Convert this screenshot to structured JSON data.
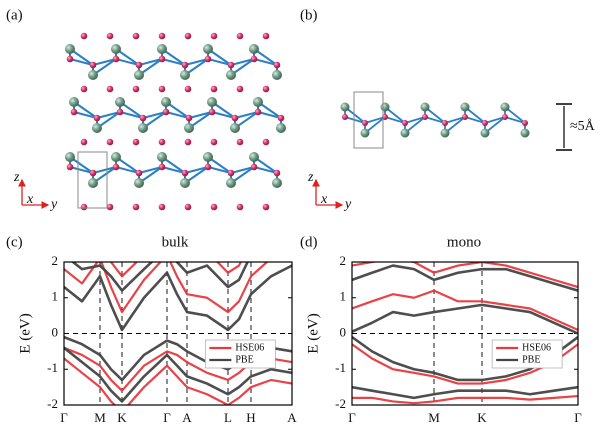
{
  "panels": {
    "a": "(a)",
    "b": "(b)"
  },
  "axes_a": {
    "z": "z",
    "x": "x",
    "y": "y"
  },
  "axes_b": {
    "z": "z",
    "x": "x",
    "y": "y"
  },
  "thickness": "≈5Å",
  "chart_data": [
    {
      "type": "band",
      "panel": "(c)",
      "title": "bulk",
      "ylabel": "E (eV)",
      "xlim": [
        0,
        228
      ],
      "ylim": [
        -2,
        2
      ],
      "yticks": [
        -2,
        -1,
        0,
        1,
        2
      ],
      "xticks": [
        {
          "value": 0,
          "label": "Γ"
        },
        {
          "value": 36,
          "label": "M"
        },
        {
          "value": 58,
          "label": "K"
        },
        {
          "value": 103,
          "label": "Γ"
        },
        {
          "value": 123,
          "label": "A"
        },
        {
          "value": 164,
          "label": "L"
        },
        {
          "value": 187,
          "label": "H"
        },
        {
          "value": 228,
          "label": "A"
        }
      ],
      "x": [
        0,
        18,
        36,
        47,
        58,
        80,
        103,
        113,
        123,
        143,
        164,
        175,
        187,
        207,
        228
      ],
      "series": [
        {
          "name": "HSE06",
          "color": "#e8383d",
          "bands": [
            [
              1.8,
              1.4,
              2.1,
              1.3,
              0.6,
              1.5,
              2.2,
              1.6,
              1.1,
              1.0,
              0.6,
              0.9,
              1.6,
              2.1,
              2.4
            ],
            [
              2.6,
              2.2,
              2.3,
              2.0,
              1.6,
              2.2,
              2.8,
              2.4,
              2.1,
              2.3,
              1.7,
              1.9,
              2.6,
              2.7,
              2.9
            ],
            [
              -0.4,
              -0.6,
              -0.9,
              -1.3,
              -1.6,
              -0.9,
              -0.5,
              -0.6,
              -0.8,
              -1.1,
              -1.3,
              -1.1,
              -0.8,
              -0.7,
              -0.8
            ],
            [
              -0.7,
              -1.1,
              -1.5,
              -1.9,
              -2.2,
              -1.5,
              -0.9,
              -1.2,
              -1.5,
              -1.7,
              -2.0,
              -1.8,
              -1.5,
              -1.3,
              -1.4
            ]
          ]
        },
        {
          "name": "PBE",
          "color": "#454545",
          "bands": [
            [
              1.3,
              0.9,
              1.6,
              0.8,
              0.1,
              1.0,
              1.7,
              1.1,
              0.6,
              0.5,
              0.1,
              0.4,
              1.1,
              1.6,
              1.9
            ],
            [
              2.2,
              1.8,
              1.9,
              1.6,
              1.2,
              1.8,
              2.4,
              2.0,
              1.7,
              1.9,
              1.3,
              1.5,
              2.2,
              2.3,
              2.5
            ],
            [
              -0.1,
              -0.3,
              -0.6,
              -1.0,
              -1.3,
              -0.6,
              -0.2,
              -0.3,
              -0.5,
              -0.8,
              -1.0,
              -0.8,
              -0.5,
              -0.4,
              -0.5
            ],
            [
              -0.4,
              -0.8,
              -1.2,
              -1.6,
              -1.9,
              -1.2,
              -0.6,
              -0.9,
              -1.2,
              -1.4,
              -1.7,
              -1.5,
              -1.2,
              -1.0,
              -1.1
            ]
          ]
        }
      ]
    },
    {
      "type": "band",
      "panel": "(d)",
      "title": "mono",
      "ylabel": "E (eV)",
      "xlim": [
        0,
        226
      ],
      "ylim": [
        -2,
        2
      ],
      "yticks": [
        -2,
        -1,
        0,
        1,
        2
      ],
      "xticks": [
        {
          "value": 0,
          "label": "Γ"
        },
        {
          "value": 82,
          "label": "M"
        },
        {
          "value": 130,
          "label": "K"
        },
        {
          "value": 226,
          "label": "Γ"
        }
      ],
      "x": [
        0,
        20,
        41,
        62,
        82,
        106,
        130,
        154,
        178,
        202,
        226
      ],
      "series": [
        {
          "name": "HSE06",
          "color": "#e8383d",
          "bands": [
            [
              0.7,
              0.9,
              1.1,
              1.0,
              1.2,
              0.9,
              0.9,
              0.8,
              0.7,
              0.4,
              0.1
            ],
            [
              1.9,
              2.0,
              2.1,
              2.0,
              1.7,
              1.9,
              2.0,
              1.9,
              1.7,
              1.5,
              1.3
            ],
            [
              -0.3,
              -0.7,
              -1.0,
              -1.1,
              -1.2,
              -1.4,
              -1.4,
              -1.3,
              -1.1,
              -0.8,
              -0.3
            ],
            [
              -1.8,
              -1.8,
              -1.9,
              -1.95,
              -1.9,
              -1.8,
              -1.8,
              -1.8,
              -1.85,
              -1.8,
              -1.75
            ]
          ]
        },
        {
          "name": "PBE",
          "color": "#454545",
          "bands": [
            [
              0.05,
              0.3,
              0.6,
              0.5,
              0.6,
              0.7,
              0.8,
              0.7,
              0.6,
              0.3,
              0.0
            ],
            [
              1.5,
              1.7,
              1.9,
              1.8,
              1.5,
              1.7,
              1.8,
              1.8,
              1.6,
              1.4,
              1.2
            ],
            [
              -0.1,
              -0.5,
              -0.8,
              -1.0,
              -1.1,
              -1.3,
              -1.3,
              -1.2,
              -1.0,
              -0.6,
              -0.1
            ],
            [
              -1.5,
              -1.6,
              -1.7,
              -1.8,
              -1.7,
              -1.6,
              -1.6,
              -1.6,
              -1.7,
              -1.6,
              -1.5
            ]
          ]
        }
      ]
    }
  ]
}
